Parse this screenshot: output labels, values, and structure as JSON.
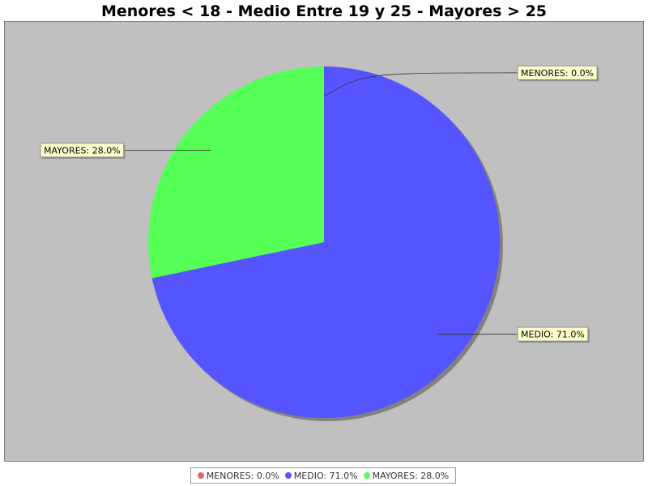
{
  "chart_data": {
    "type": "pie",
    "title": "Menores < 18 - Medio Entre 19 y 25 - Mayores > 25",
    "slices": [
      {
        "name": "MENORES",
        "value": 0.0,
        "label": "MENORES: 0.0%",
        "color": "#e06666"
      },
      {
        "name": "MEDIO",
        "value": 71.0,
        "label": "MEDIO: 71.0%",
        "color": "#5555ff"
      },
      {
        "name": "MAYORES",
        "value": 28.0,
        "label": "MAYORES: 28.0%",
        "color": "#55ff55"
      }
    ],
    "legend": {
      "placement": "bottom",
      "entries": [
        "MENORES: 0.0%",
        "MEDIO: 71.0%",
        "MAYORES: 28.0%"
      ]
    },
    "plot_background": "#c0c0c0",
    "callout_background": "#ffffcc"
  }
}
